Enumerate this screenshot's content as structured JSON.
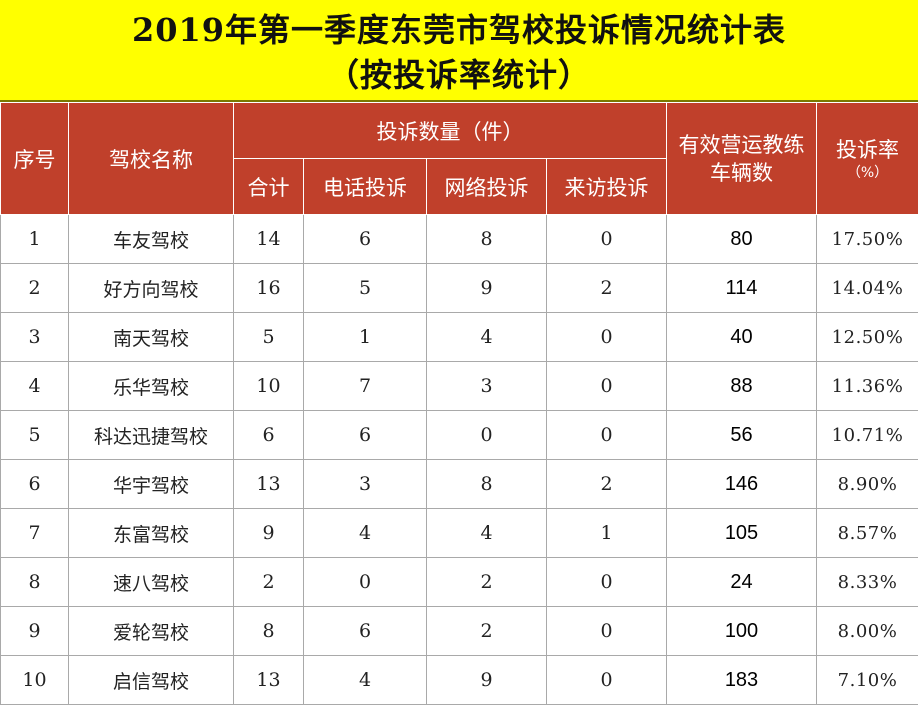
{
  "title": {
    "line1": "2019年第一季度东莞市驾校投诉情况统计表",
    "line2": "（按投诉率统计）"
  },
  "header": {
    "index": "序号",
    "school_name": "驾校名称",
    "complaints_group": "投诉数量（件）",
    "total": "合计",
    "phone": "电话投诉",
    "online": "网络投诉",
    "visit": "来访投诉",
    "vehicles": "有效营运教练车辆数",
    "rate": "投诉率",
    "rate_unit": "（%）"
  },
  "rows": [
    {
      "index": "1",
      "name": "车友驾校",
      "total": "14",
      "phone": "6",
      "online": "8",
      "visit": "0",
      "vehicles": "80",
      "rate": "17.50%"
    },
    {
      "index": "2",
      "name": "好方向驾校",
      "total": "16",
      "phone": "5",
      "online": "9",
      "visit": "2",
      "vehicles": "114",
      "rate": "14.04%"
    },
    {
      "index": "3",
      "name": "南天驾校",
      "total": "5",
      "phone": "1",
      "online": "4",
      "visit": "0",
      "vehicles": "40",
      "rate": "12.50%"
    },
    {
      "index": "4",
      "name": "乐华驾校",
      "total": "10",
      "phone": "7",
      "online": "3",
      "visit": "0",
      "vehicles": "88",
      "rate": "11.36%"
    },
    {
      "index": "5",
      "name": "科达迅捷驾校",
      "total": "6",
      "phone": "6",
      "online": "0",
      "visit": "0",
      "vehicles": "56",
      "rate": "10.71%"
    },
    {
      "index": "6",
      "name": "华宇驾校",
      "total": "13",
      "phone": "3",
      "online": "8",
      "visit": "2",
      "vehicles": "146",
      "rate": "8.90%"
    },
    {
      "index": "7",
      "name": "东富驾校",
      "total": "9",
      "phone": "4",
      "online": "4",
      "visit": "1",
      "vehicles": "105",
      "rate": "8.57%"
    },
    {
      "index": "8",
      "name": "速八驾校",
      "total": "2",
      "phone": "0",
      "online": "2",
      "visit": "0",
      "vehicles": "24",
      "rate": "8.33%"
    },
    {
      "index": "9",
      "name": "爱轮驾校",
      "total": "8",
      "phone": "6",
      "online": "2",
      "visit": "0",
      "vehicles": "100",
      "rate": "8.00%"
    },
    {
      "index": "10",
      "name": "启信驾校",
      "total": "13",
      "phone": "4",
      "online": "9",
      "visit": "0",
      "vehicles": "183",
      "rate": "7.10%"
    }
  ],
  "colors": {
    "title_background": "#ffff00",
    "header_background": "#c0402b",
    "header_text": "#ffffff"
  }
}
